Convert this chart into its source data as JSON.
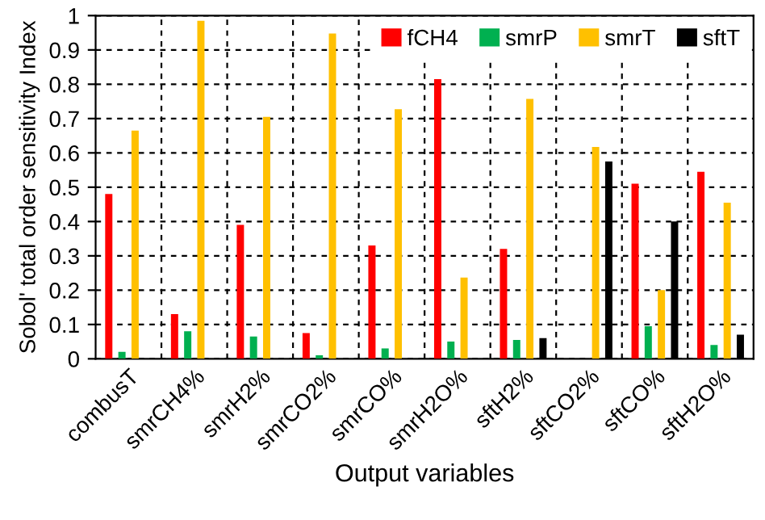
{
  "chart_data": {
    "type": "bar",
    "xlabel": "Output variables",
    "ylabel": "Sobol' total order sensitivity Index",
    "categories": [
      "combusT",
      "smrCH4%",
      "smrH2%",
      "smrCO2%",
      "smrCO%",
      "smrH2O%",
      "sftH2%",
      "sftCO2%",
      "sftCO%",
      "sftH2O%"
    ],
    "series": [
      {
        "name": "fCH4",
        "color": "#ff0000",
        "values": [
          0.48,
          0.13,
          0.39,
          0.075,
          0.33,
          0.815,
          0.32,
          null,
          0.51,
          0.545
        ]
      },
      {
        "name": "smrP",
        "color": "#00b050",
        "values": [
          0.02,
          0.08,
          0.065,
          0.01,
          0.03,
          0.05,
          0.055,
          null,
          0.095,
          0.04
        ]
      },
      {
        "name": "smrT",
        "color": "#ffc000",
        "values": [
          0.665,
          0.985,
          0.705,
          0.948,
          0.727,
          0.237,
          0.757,
          0.617,
          0.2,
          0.455
        ]
      },
      {
        "name": "sftT",
        "color": "#000000",
        "values": [
          null,
          null,
          null,
          null,
          null,
          null,
          0.06,
          0.575,
          0.4,
          0.07
        ]
      }
    ],
    "ylim": [
      0,
      1
    ],
    "yticks": [
      0,
      0.1,
      0.2,
      0.3,
      0.4,
      0.5,
      0.6,
      0.7,
      0.8,
      0.9,
      1
    ],
    "grid": true,
    "legend": "top right"
  }
}
